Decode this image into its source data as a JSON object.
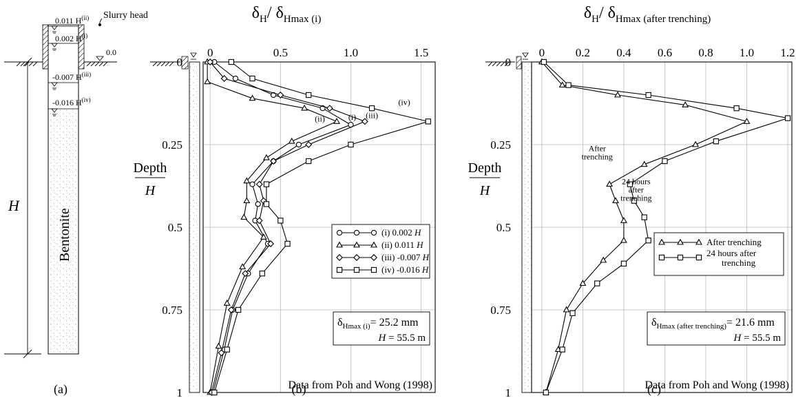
{
  "panel_a": {
    "levels": {
      "l1": {
        "val": "0.011",
        "sup": "(ii)"
      },
      "l2": {
        "val": "0.002",
        "sup": "(i)"
      },
      "l3": {
        "val": "-0.007",
        "sup": "(iii)"
      },
      "l4": {
        "val": "-0.016",
        "sup": "(iv)"
      }
    },
    "H_symbol": "H",
    "slurry_head_label": "Slurry head",
    "zero_label": "0.0",
    "bentonite_label": "Bentonite",
    "caption": "(a)"
  },
  "shared": {
    "depth_num": "Depth",
    "depth_den": "H",
    "source_note": "Data from Poh and Wong (1998)"
  },
  "chart_data": [
    {
      "type": "line",
      "caption": "(b)",
      "title": {
        "main": "δ",
        "sub1": "H",
        "sep": "/ δ",
        "sub2": "Hmax (i)"
      },
      "xlim": [
        -0.05,
        1.6
      ],
      "ylim": [
        0,
        1
      ],
      "y_inverted": true,
      "xticks": [
        0,
        0.5,
        1.0,
        1.5
      ],
      "xtick_labels": [
        "0",
        "0.5",
        "1.0",
        "1.5"
      ],
      "yticks": [
        0,
        0.25,
        0.5,
        0.75,
        1
      ],
      "ytick_labels": [
        "0",
        "0.25",
        "0.5",
        "0.75",
        "1"
      ],
      "grid": true,
      "legend_position": "mid-right",
      "series": [
        {
          "name": "(i) 0.002",
          "name_suffix": "H",
          "marker": "circle",
          "x": [
            0.03,
            0.18,
            0.45,
            0.8,
            1.0,
            0.63,
            0.45,
            0.3,
            0.34,
            0.32,
            0.41,
            0.27,
            0.16,
            0.1,
            0.02
          ],
          "y": [
            0.0,
            0.05,
            0.1,
            0.14,
            0.19,
            0.25,
            0.3,
            0.37,
            0.43,
            0.48,
            0.55,
            0.64,
            0.75,
            0.87,
            1.0
          ]
        },
        {
          "name": "(ii) 0.011",
          "name_suffix": "H",
          "marker": "triangle",
          "x": [
            -0.02,
            -0.02,
            0.3,
            0.67,
            0.9,
            0.58,
            0.4,
            0.26,
            0.26,
            0.24,
            0.38,
            0.23,
            0.12,
            0.06,
            0.0
          ],
          "y": [
            0.0,
            0.06,
            0.11,
            0.14,
            0.18,
            0.24,
            0.29,
            0.36,
            0.42,
            0.47,
            0.53,
            0.62,
            0.73,
            0.86,
            1.0
          ]
        },
        {
          "name": "(iii) -0.007",
          "name_suffix": "H",
          "marker": "diamond",
          "x": [
            0.0,
            0.1,
            0.5,
            0.85,
            1.1,
            0.7,
            0.45,
            0.35,
            0.38,
            0.35,
            0.43,
            0.25,
            0.15,
            0.08,
            0.01
          ],
          "y": [
            0.0,
            0.05,
            0.1,
            0.14,
            0.18,
            0.25,
            0.3,
            0.37,
            0.42,
            0.48,
            0.55,
            0.64,
            0.75,
            0.88,
            1.0
          ]
        },
        {
          "name": "(iv) -0.016",
          "name_suffix": "H",
          "marker": "square",
          "x": [
            0.15,
            0.3,
            0.7,
            1.15,
            1.55,
            1.0,
            0.7,
            0.4,
            0.4,
            0.5,
            0.55,
            0.37,
            0.2,
            0.12,
            0.03
          ],
          "y": [
            0.0,
            0.05,
            0.1,
            0.14,
            0.18,
            0.25,
            0.3,
            0.37,
            0.43,
            0.48,
            0.55,
            0.64,
            0.75,
            0.87,
            1.0
          ]
        }
      ],
      "curve_labels": [
        {
          "text": "(iv)",
          "x": 1.38,
          "y": 0.13
        },
        {
          "text": "(iii)",
          "x": 1.15,
          "y": 0.17
        },
        {
          "text": "(i)",
          "x": 1.01,
          "y": 0.175
        },
        {
          "text": "(ii)",
          "x": 0.78,
          "y": 0.18
        }
      ],
      "info_box": {
        "main": "δ",
        "sub": "Hmax (i)",
        "eq": "= 25.2 mm",
        "h_sym": "H",
        "h_eq": "= 55.5 m"
      },
      "note": "Data from Poh and Wong (1998)"
    },
    {
      "type": "line",
      "caption": "(c)",
      "title": {
        "main": "δ",
        "sub1": "H",
        "sep": "/ δ",
        "sub2": "Hmax (after trenching)"
      },
      "xlim": [
        -0.05,
        1.22
      ],
      "ylim": [
        0,
        1
      ],
      "y_inverted": true,
      "xticks": [
        0,
        0.2,
        0.4,
        0.6,
        0.8,
        1.0,
        1.2
      ],
      "xtick_labels": [
        "0",
        "0.2",
        "0.4",
        "0.6",
        "0.8",
        "1.0",
        "1.2"
      ],
      "yticks": [
        0,
        0.25,
        0.5,
        0.75,
        1
      ],
      "ytick_labels": [
        "0",
        "0.25",
        "0.5",
        "0.75",
        "1"
      ],
      "grid": true,
      "legend_position": "mid-right",
      "series": [
        {
          "name": "After trenching",
          "marker": "triangle",
          "x": [
            0.0,
            0.1,
            0.37,
            0.7,
            1.0,
            0.75,
            0.5,
            0.33,
            0.36,
            0.4,
            0.4,
            0.3,
            0.2,
            0.12,
            0.08,
            0.02
          ],
          "y": [
            0.0,
            0.07,
            0.1,
            0.13,
            0.18,
            0.25,
            0.31,
            0.37,
            0.42,
            0.48,
            0.54,
            0.6,
            0.67,
            0.75,
            0.87,
            1.0
          ]
        },
        {
          "name": "24 hours after trenching",
          "marker": "square",
          "x": [
            0.01,
            0.13,
            0.52,
            0.95,
            1.2,
            0.85,
            0.6,
            0.43,
            0.45,
            0.5,
            0.52,
            0.4,
            0.27,
            0.15,
            0.1,
            0.02
          ],
          "y": [
            0.0,
            0.07,
            0.1,
            0.14,
            0.17,
            0.24,
            0.3,
            0.37,
            0.42,
            0.47,
            0.54,
            0.61,
            0.67,
            0.76,
            0.87,
            1.0
          ]
        }
      ],
      "curve_labels": [
        {
          "text": "After",
          "x": 0.27,
          "y": 0.27
        },
        {
          "text": "trenching",
          "x": 0.27,
          "y": 0.295
        },
        {
          "text": "24 hours",
          "x": 0.46,
          "y": 0.37
        },
        {
          "text": "after",
          "x": 0.46,
          "y": 0.395
        },
        {
          "text": "trenching",
          "x": 0.46,
          "y": 0.42
        }
      ],
      "info_box": {
        "main": "δ",
        "sub": "Hmax (after trenching)",
        "eq": "= 21.6 mm",
        "h_sym": "H",
        "h_eq": "= 55.5 m"
      },
      "note": "Data from Poh and Wong (1998)"
    }
  ]
}
